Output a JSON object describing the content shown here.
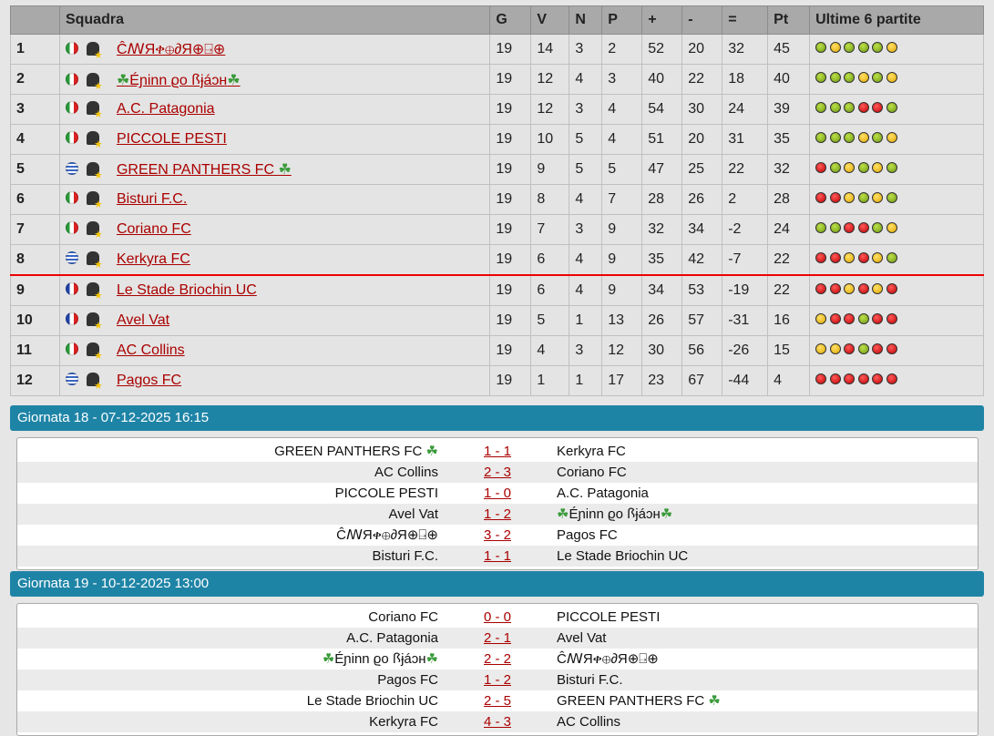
{
  "headers": [
    "",
    "Squadra",
    "G",
    "V",
    "N",
    "P",
    "+",
    "-",
    "=",
    "Pt",
    "Ultime 6 partite"
  ],
  "standings": [
    {
      "pos": "1",
      "flag": "it",
      "team": "ĈꟿЯቀ⊕∂Я⊕⍈⊕",
      "g": "19",
      "v": "14",
      "n": "3",
      "p": "2",
      "gf": "52",
      "ga": "20",
      "diff": "32",
      "pt": "45",
      "form": [
        "g",
        "y",
        "g",
        "g",
        "g",
        "y"
      ]
    },
    {
      "pos": "2",
      "flag": "it",
      "team": "☘Éɲinn ϱo ꟗɉáɔн☘",
      "g": "19",
      "v": "12",
      "n": "4",
      "p": "3",
      "gf": "40",
      "ga": "22",
      "diff": "18",
      "pt": "40",
      "form": [
        "g",
        "g",
        "g",
        "y",
        "g",
        "y"
      ]
    },
    {
      "pos": "3",
      "flag": "it",
      "team": "A.C. Patagonia",
      "g": "19",
      "v": "12",
      "n": "3",
      "p": "4",
      "gf": "54",
      "ga": "30",
      "diff": "24",
      "pt": "39",
      "form": [
        "g",
        "g",
        "g",
        "r",
        "r",
        "g"
      ]
    },
    {
      "pos": "4",
      "flag": "it",
      "team": "PICCOLE PESTI",
      "g": "19",
      "v": "10",
      "n": "5",
      "p": "4",
      "gf": "51",
      "ga": "20",
      "diff": "31",
      "pt": "35",
      "form": [
        "g",
        "g",
        "g",
        "y",
        "g",
        "y"
      ]
    },
    {
      "pos": "5",
      "flag": "gr",
      "team": "GREEN PANTHERS FC ☘",
      "g": "19",
      "v": "9",
      "n": "5",
      "p": "5",
      "gf": "47",
      "ga": "25",
      "diff": "22",
      "pt": "32",
      "form": [
        "r",
        "g",
        "y",
        "g",
        "y",
        "g"
      ]
    },
    {
      "pos": "6",
      "flag": "it",
      "team": "Bisturi F.C.",
      "g": "19",
      "v": "8",
      "n": "4",
      "p": "7",
      "gf": "28",
      "ga": "26",
      "diff": "2",
      "pt": "28",
      "form": [
        "r",
        "r",
        "y",
        "g",
        "y",
        "g"
      ]
    },
    {
      "pos": "7",
      "flag": "it",
      "team": "Coriano FC",
      "g": "19",
      "v": "7",
      "n": "3",
      "p": "9",
      "gf": "32",
      "ga": "34",
      "diff": "-2",
      "pt": "24",
      "form": [
        "g",
        "g",
        "r",
        "r",
        "g",
        "y"
      ]
    },
    {
      "pos": "8",
      "flag": "gr",
      "team": "Kerkyra FC",
      "g": "19",
      "v": "6",
      "n": "4",
      "p": "9",
      "gf": "35",
      "ga": "42",
      "diff": "-7",
      "pt": "22",
      "form": [
        "r",
        "r",
        "y",
        "r",
        "y",
        "g"
      ]
    },
    {
      "pos": "9",
      "flag": "fr",
      "team": "Le Stade Briochin UC",
      "g": "19",
      "v": "6",
      "n": "4",
      "p": "9",
      "gf": "34",
      "ga": "53",
      "diff": "-19",
      "pt": "22",
      "form": [
        "r",
        "r",
        "y",
        "r",
        "y",
        "r"
      ]
    },
    {
      "pos": "10",
      "flag": "fr",
      "team": "Avel Vat",
      "g": "19",
      "v": "5",
      "n": "1",
      "p": "13",
      "gf": "26",
      "ga": "57",
      "diff": "-31",
      "pt": "16",
      "form": [
        "y",
        "r",
        "r",
        "g",
        "r",
        "r"
      ]
    },
    {
      "pos": "11",
      "flag": "it",
      "team": "AC Collins",
      "g": "19",
      "v": "4",
      "n": "3",
      "p": "12",
      "gf": "30",
      "ga": "56",
      "diff": "-26",
      "pt": "15",
      "form": [
        "y",
        "y",
        "r",
        "g",
        "r",
        "r"
      ]
    },
    {
      "pos": "12",
      "flag": "gr",
      "team": "Pagos FC",
      "g": "19",
      "v": "1",
      "n": "1",
      "p": "17",
      "gf": "23",
      "ga": "67",
      "diff": "-44",
      "pt": "4",
      "form": [
        "r",
        "r",
        "r",
        "r",
        "r",
        "r"
      ]
    }
  ],
  "rounds": [
    {
      "title": "Giornata 18 - 07-12-2025 16:15",
      "matches": [
        [
          "GREEN PANTHERS FC ☘",
          "1 - 1",
          "Kerkyra FC"
        ],
        [
          "AC Collins",
          "2 - 3",
          "Coriano FC"
        ],
        [
          "PICCOLE PESTI",
          "1 - 0",
          "A.C. Patagonia"
        ],
        [
          "Avel Vat",
          "1 - 2",
          "☘Éɲinn ϱo ꟗɉáɔн☘"
        ],
        [
          "ĈꟿЯቀ⊕∂Я⊕⍈⊕",
          "3 - 2",
          "Pagos FC"
        ],
        [
          "Bisturi F.C.",
          "1 - 1",
          "Le Stade Briochin UC"
        ]
      ]
    },
    {
      "title": "Giornata 19 - 10-12-2025 13:00",
      "matches": [
        [
          "Coriano FC",
          "0 - 0",
          "PICCOLE PESTI"
        ],
        [
          "A.C. Patagonia",
          "2 - 1",
          "Avel Vat"
        ],
        [
          "☘Éɲinn ϱo ꟗɉáɔн☘",
          "2 - 2",
          "ĈꟿЯቀ⊕∂Я⊕⍈⊕"
        ],
        [
          "Pagos FC",
          "1 - 2",
          "Bisturi F.C."
        ],
        [
          "Le Stade Briochin UC",
          "2 - 5",
          "GREEN PANTHERS FC ☘"
        ],
        [
          "Kerkyra FC",
          "4 - 3",
          "AC Collins"
        ]
      ]
    }
  ],
  "colors": {
    "win": "#7fb31a",
    "draw": "#f0c000",
    "loss": "#e00000",
    "bar": "#1e84a6",
    "link": "#aa0000"
  }
}
